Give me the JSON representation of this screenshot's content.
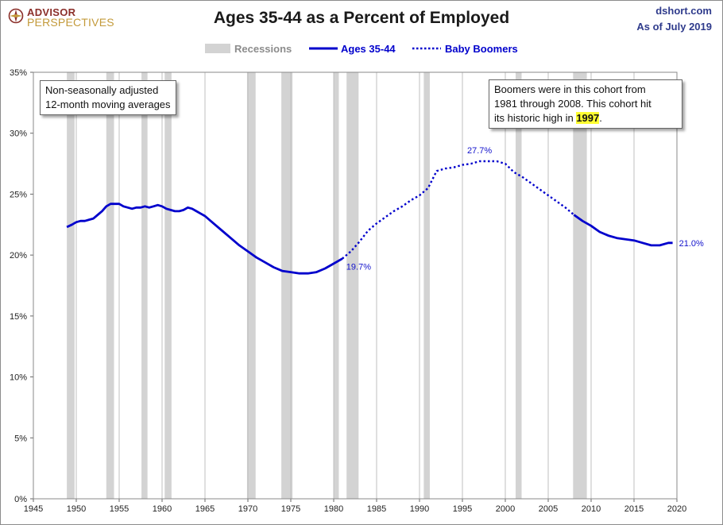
{
  "header": {
    "logo_line1": "ADVISOR",
    "logo_line2": "PERSPECTIVES",
    "title": "Ages 35-44 as a Percent of Employed",
    "source": "dshort.com",
    "as_of": "As of July 2019"
  },
  "legend": {
    "recessions": "Recessions",
    "solid": "Ages 35-44",
    "dotted": "Baby Boomers"
  },
  "notes": {
    "left_line1": "Non-seasonally adjusted",
    "left_line2": "12-month moving averages",
    "right_line1": "Boomers were in this cohort from",
    "right_line2": "1981  through 2008.  This cohort hit",
    "right_line3_pre": "its historic high in ",
    "right_line3_hl": "1997",
    "right_line3_post": "."
  },
  "colors": {
    "line": "#0000cc",
    "recession": "#d3d3d3",
    "grid": "#bfbfbf",
    "label": "#1212cc"
  },
  "chart_data": {
    "type": "line",
    "title": "Ages 35-44 as a Percent of Employed",
    "xlim": [
      1945,
      2020
    ],
    "ylim": [
      0,
      35
    ],
    "x_ticks": [
      "1945",
      "1950",
      "1955",
      "1960",
      "1965",
      "1970",
      "1975",
      "1980",
      "1985",
      "1990",
      "1995",
      "2000",
      "2005",
      "2010",
      "2015",
      "2020"
    ],
    "y_ticks": [
      "0%",
      "5%",
      "10%",
      "15%",
      "20%",
      "25%",
      "30%",
      "35%"
    ],
    "grid": "vertical",
    "legend_position": "top-center",
    "recessions": [
      [
        1948.9,
        1949.8
      ],
      [
        1953.5,
        1954.4
      ],
      [
        1957.6,
        1958.3
      ],
      [
        1960.3,
        1961.1
      ],
      [
        1969.9,
        1970.9
      ],
      [
        1973.9,
        1975.2
      ],
      [
        1980.0,
        1980.6
      ],
      [
        1981.5,
        1982.9
      ],
      [
        1990.5,
        1991.2
      ],
      [
        2001.2,
        2001.9
      ],
      [
        2007.9,
        2009.5
      ]
    ],
    "series": [
      {
        "name": "Ages 35-44",
        "style": "solid",
        "x": [
          1948.9,
          1949.5,
          1950.0,
          1950.5,
          1951.0,
          1951.5,
          1952.0,
          1952.5,
          1953.0,
          1953.5,
          1954.0,
          1954.5,
          1955.0,
          1955.5,
          1956.0,
          1956.5,
          1957.0,
          1957.5,
          1958.0,
          1958.5,
          1959.0,
          1959.5,
          1960.0,
          1960.5,
          1961.0,
          1961.5,
          1962.0,
          1962.5,
          1963.0,
          1963.5,
          1964.0,
          1965.0,
          1966.0,
          1967.0,
          1968.0,
          1969.0,
          1970.0,
          1971.0,
          1972.0,
          1973.0,
          1974.0,
          1975.0,
          1976.0,
          1977.0,
          1978.0,
          1979.0,
          1980.0,
          1981.0
        ],
        "values": [
          22.3,
          22.5,
          22.7,
          22.8,
          22.8,
          22.9,
          23.0,
          23.3,
          23.6,
          24.0,
          24.2,
          24.2,
          24.2,
          24.0,
          23.9,
          23.8,
          23.9,
          23.9,
          24.0,
          23.9,
          24.0,
          24.1,
          24.0,
          23.8,
          23.7,
          23.6,
          23.6,
          23.7,
          23.9,
          23.8,
          23.6,
          23.2,
          22.6,
          22.0,
          21.4,
          20.8,
          20.3,
          19.8,
          19.4,
          19.0,
          18.7,
          18.6,
          18.5,
          18.5,
          18.6,
          18.9,
          19.3,
          19.7
        ]
      },
      {
        "name": "Baby Boomers",
        "style": "dotted",
        "x": [
          1981.0,
          1982.0,
          1983.0,
          1984.0,
          1985.0,
          1986.0,
          1987.0,
          1988.0,
          1989.0,
          1990.0,
          1991.0,
          1992.0,
          1993.0,
          1994.0,
          1995.0,
          1996.0,
          1997.0,
          1998.0,
          1999.0,
          2000.0,
          2001.0,
          2002.0,
          2003.0,
          2004.0,
          2005.0,
          2006.0,
          2007.0,
          2008.0
        ],
        "values": [
          19.7,
          20.3,
          21.1,
          22.0,
          22.6,
          23.1,
          23.6,
          24.0,
          24.5,
          24.9,
          25.5,
          26.9,
          27.1,
          27.2,
          27.4,
          27.5,
          27.7,
          27.7,
          27.7,
          27.5,
          26.8,
          26.4,
          25.9,
          25.4,
          24.9,
          24.4,
          23.9,
          23.3
        ]
      },
      {
        "name": "Ages 35-44 (after cohort)",
        "style": "solid",
        "x": [
          2008.0,
          2009.0,
          2010.0,
          2011.0,
          2012.0,
          2013.0,
          2014.0,
          2015.0,
          2016.0,
          2017.0,
          2018.0,
          2019.0,
          2019.5
        ],
        "values": [
          23.3,
          22.8,
          22.4,
          21.9,
          21.6,
          21.4,
          21.3,
          21.2,
          21.0,
          20.8,
          20.8,
          21.0,
          21.0
        ]
      }
    ],
    "annotations": [
      {
        "x": 1981.0,
        "y": 19.7,
        "text": "19.7%"
      },
      {
        "x": 1997.0,
        "y": 27.7,
        "text": "27.7%"
      },
      {
        "x": 2019.5,
        "y": 21.0,
        "text": "21.0%"
      }
    ]
  }
}
